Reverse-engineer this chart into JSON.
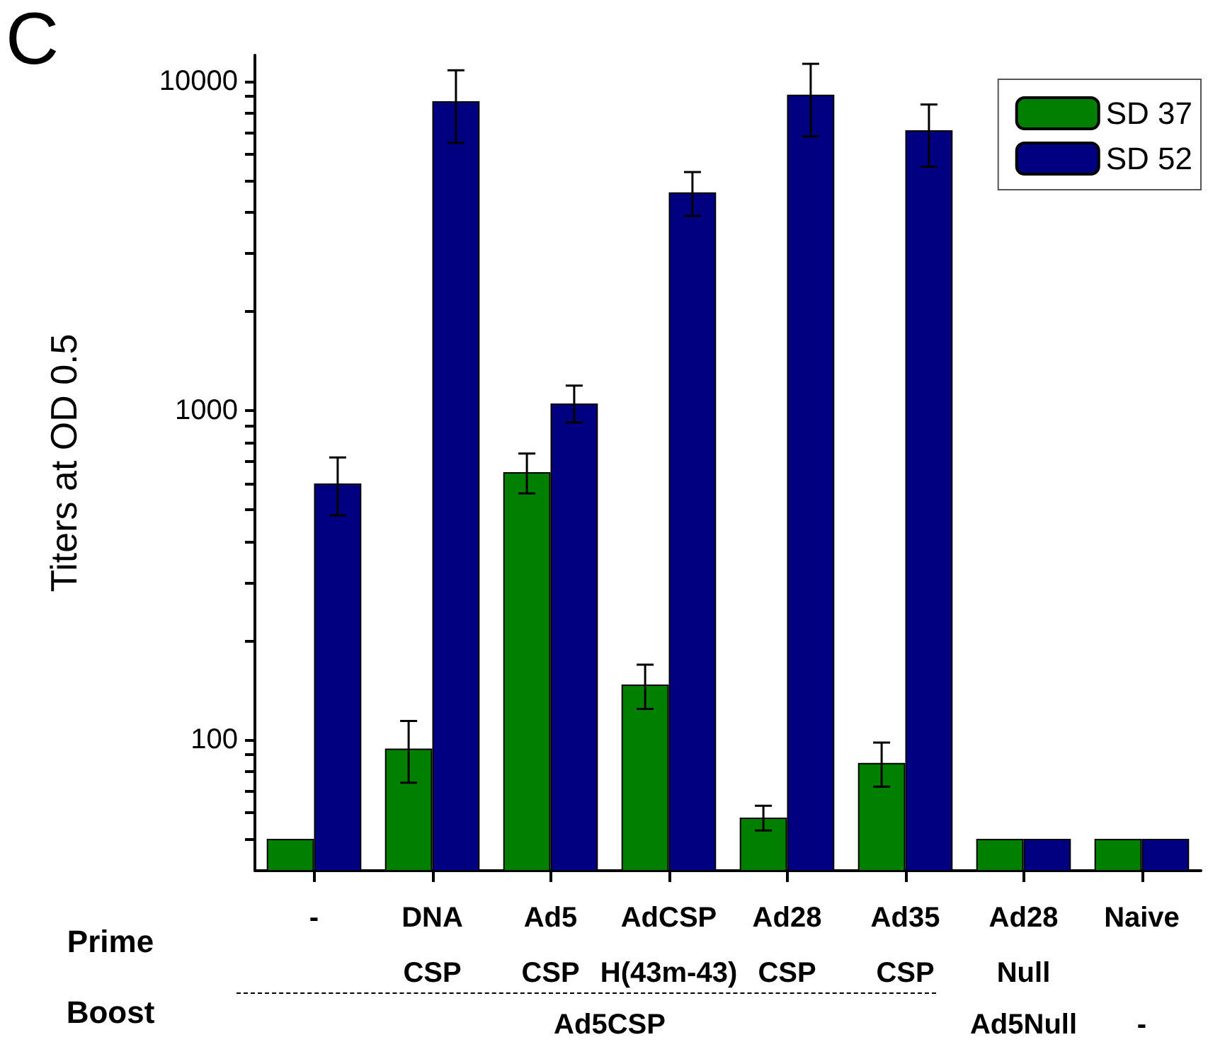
{
  "chart_data": {
    "type": "bar",
    "ylabel": "Titers at OD 0.5",
    "categories": [
      "-",
      "DNA\nCSP",
      "Ad5\nCSP",
      "AdCSP\nH(43m-43)",
      "Ad28\nCSP",
      "Ad35\nCSP",
      "Ad28\nNull",
      "Naive"
    ],
    "series": [
      {
        "name": "SD 37",
        "color": "#007f00",
        "values": [
          50,
          94,
          650,
          147,
          58,
          85,
          50,
          50
        ],
        "errors": [
          null,
          [
            74,
            114
          ],
          [
            560,
            740
          ],
          [
            124,
            169
          ],
          [
            53,
            63
          ],
          [
            72,
            98
          ],
          null,
          null
        ]
      },
      {
        "name": "SD 52",
        "color": "#000080",
        "values": [
          600,
          8700,
          1050,
          4600,
          9100,
          7100,
          50,
          50
        ],
        "errors": [
          [
            480,
            720
          ],
          [
            6500,
            10800
          ],
          [
            920,
            1190
          ],
          [
            3900,
            5300
          ],
          [
            6800,
            11300
          ],
          [
            5500,
            8500
          ],
          null,
          null
        ]
      }
    ],
    "log": true,
    "ylim": [
      40,
      12000
    ],
    "yticks": [
      {
        "value": 50,
        "label": null
      },
      {
        "value": 60,
        "label": null
      },
      {
        "value": 70,
        "label": null
      },
      {
        "value": 80,
        "label": null
      },
      {
        "value": 90,
        "label": null
      },
      100,
      {
        "value": 200,
        "label": null
      },
      {
        "value": 300,
        "label": null
      },
      {
        "value": 400,
        "label": null
      },
      {
        "value": 500,
        "label": null
      },
      {
        "value": 600,
        "label": null
      },
      {
        "value": 700,
        "label": null
      },
      {
        "value": 800,
        "label": null
      },
      {
        "value": 900,
        "label": null
      },
      1000,
      {
        "value": 2000,
        "label": null
      },
      {
        "value": 3000,
        "label": null
      },
      {
        "value": 4000,
        "label": null
      },
      {
        "value": 5000,
        "label": null
      },
      {
        "value": 6000,
        "label": null
      },
      {
        "value": 7000,
        "label": null
      },
      {
        "value": 8000,
        "label": null
      },
      {
        "value": 9000,
        "label": null
      },
      10000
    ],
    "legend": "top right",
    "annotations": [
      "C",
      "Prime",
      "Boost",
      "Ad5CSP",
      "Ad5Null",
      "-"
    ]
  }
}
